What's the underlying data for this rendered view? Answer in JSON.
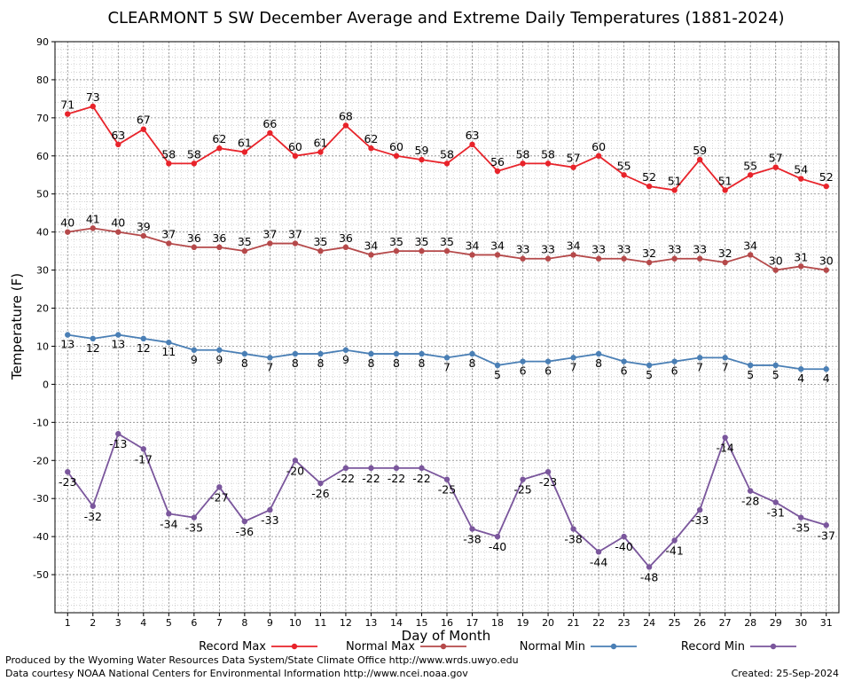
{
  "chart_data": {
    "type": "line",
    "title": "CLEARMONT 5 SW December Average and Extreme Daily Temperatures (1881-2024)",
    "xlabel": "Day of Month",
    "ylabel": "Temperature (F)",
    "ylim": [
      -60,
      90
    ],
    "yticks": [
      -50,
      -40,
      -30,
      -20,
      -10,
      0,
      10,
      20,
      30,
      40,
      50,
      60,
      70,
      80,
      90
    ],
    "grid": true,
    "legend_position": "bottom",
    "x": [
      1,
      2,
      3,
      4,
      5,
      6,
      7,
      8,
      9,
      10,
      11,
      12,
      13,
      14,
      15,
      16,
      17,
      18,
      19,
      20,
      21,
      22,
      23,
      24,
      25,
      26,
      27,
      28,
      29,
      30,
      31
    ],
    "series": [
      {
        "name": "Record Max",
        "color": "#e8232a",
        "values": [
          71,
          73,
          63,
          67,
          58,
          58,
          62,
          61,
          66,
          60,
          61,
          68,
          62,
          60,
          59,
          58,
          63,
          56,
          58,
          58,
          57,
          60,
          55,
          52,
          51,
          59,
          51,
          55,
          57,
          54,
          52
        ]
      },
      {
        "name": "Normal Max",
        "color": "#b5494a",
        "values": [
          40,
          41,
          40,
          39,
          37,
          36,
          36,
          35,
          37,
          37,
          35,
          36,
          34,
          35,
          35,
          35,
          34,
          34,
          33,
          33,
          34,
          33,
          33,
          32,
          33,
          33,
          32,
          34,
          30,
          31,
          30
        ]
      },
      {
        "name": "Normal Min",
        "color": "#4a7fb5",
        "values": [
          13,
          12,
          13,
          12,
          11,
          9,
          9,
          8,
          7,
          8,
          8,
          9,
          8,
          8,
          8,
          7,
          8,
          5,
          6,
          6,
          7,
          8,
          6,
          5,
          6,
          7,
          7,
          5,
          5,
          4,
          4
        ]
      },
      {
        "name": "Record Min",
        "color": "#7a569c",
        "values": [
          -23,
          -32,
          -13,
          -17,
          -34,
          -35,
          -27,
          -36,
          -33,
          -20,
          -26,
          -22,
          -22,
          -22,
          -22,
          -25,
          -38,
          -40,
          -25,
          -23,
          -38,
          -44,
          -40,
          -48,
          -41,
          -33,
          -14,
          -28,
          -31,
          -35,
          -37
        ]
      }
    ]
  },
  "footer": {
    "line1": "Produced by the Wyoming Water Resources Data System/State Climate Office http://www.wrds.uwyo.edu",
    "line2": "Data courtesy NOAA National Centers for Environmental Information http://www.ncei.noaa.gov",
    "created": "Created:  25-Sep-2024"
  }
}
